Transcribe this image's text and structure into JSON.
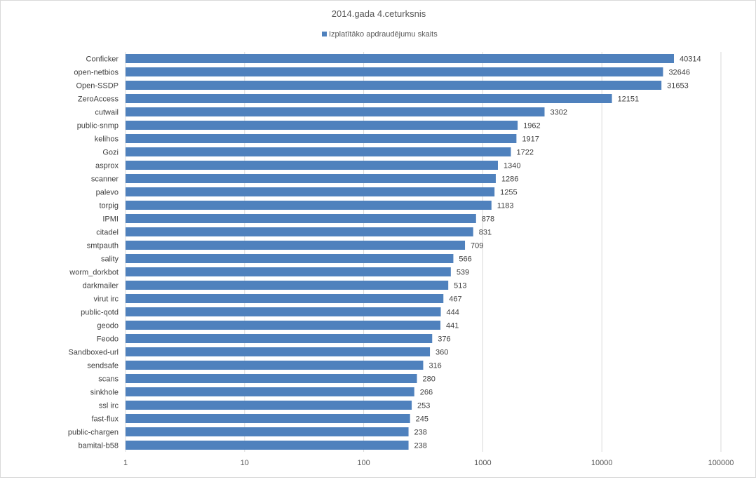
{
  "chart_data": {
    "type": "bar",
    "orientation": "horizontal",
    "title": "2014.gada 4.ceturksnis",
    "legend_position": "top",
    "x_scale": "log",
    "xlim": [
      1,
      100000
    ],
    "x_ticks": [
      "1",
      "10",
      "100",
      "1000",
      "10000",
      "100000"
    ],
    "grid": true,
    "series": [
      {
        "name": "Izplatītāko apdraudējumu skaits",
        "color": "#4f81bd",
        "categories": [
          "Conficker",
          "open-netbios",
          "Open-SSDP",
          "ZeroAccess",
          "cutwail",
          "public-snmp",
          "kelihos",
          "Gozi",
          "asprox",
          "scanner",
          "palevo",
          "torpig",
          "IPMI",
          "citadel",
          "smtpauth",
          "sality",
          "worm_dorkbot",
          "darkmailer",
          "virut irc",
          "public-qotd",
          "geodo",
          "Feodo",
          "Sandboxed-url",
          "sendsafe",
          "scans",
          "sinkhole",
          "ssl irc",
          "fast-flux",
          "public-chargen",
          "bamital-b58"
        ],
        "values": [
          40314,
          32646,
          31653,
          12151,
          3302,
          1962,
          1917,
          1722,
          1340,
          1286,
          1255,
          1183,
          878,
          831,
          709,
          566,
          539,
          513,
          467,
          444,
          441,
          376,
          360,
          316,
          280,
          266,
          253,
          245,
          238,
          238
        ]
      }
    ]
  }
}
